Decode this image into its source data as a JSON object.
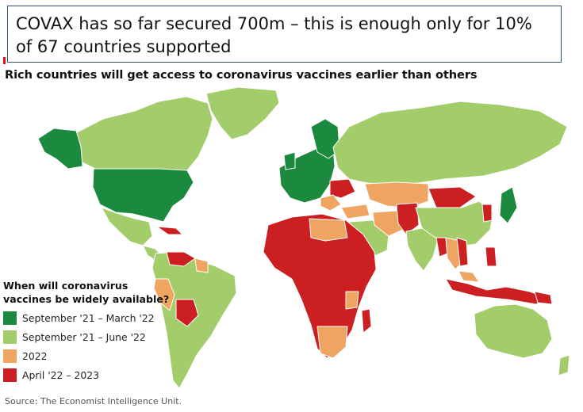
{
  "callout": {
    "line1": "COVAX has so far secured 700m – this is enough only for 10%",
    "line2": "of 67 countries supported"
  },
  "map": {
    "title": "Rich countries will get access to coronavirus vaccines earlier than others",
    "legend_title_line1": "When will coronavirus",
    "legend_title_line2": "vaccines be widely available?",
    "categories": [
      {
        "label": "September '21 – March '22",
        "color": "#1b8a3f"
      },
      {
        "label": "September '21 – June '22",
        "color": "#a3cc6b"
      },
      {
        "label": "2022",
        "color": "#f0a462"
      },
      {
        "label": "April '22 – 2023",
        "color": "#cc1f22"
      }
    ],
    "colors": {
      "ocean": "#ffffff",
      "border": "#ffffff"
    },
    "source": "Source: The Economist Intelligence Unit."
  }
}
